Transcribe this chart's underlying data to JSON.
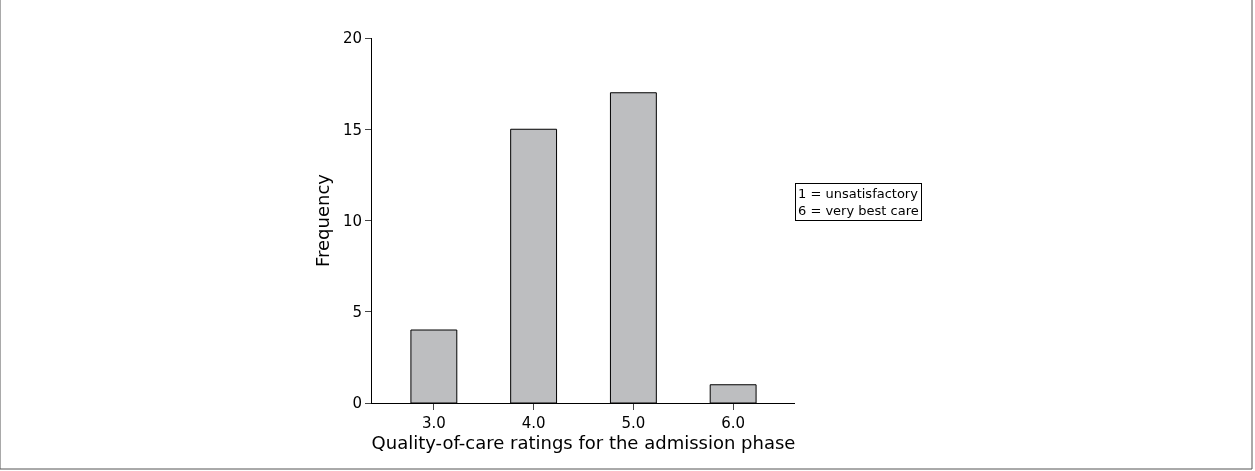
{
  "chart_data": {
    "type": "bar",
    "categories": [
      "3.0",
      "4.0",
      "5.0",
      "6.0"
    ],
    "values": [
      4,
      15,
      17,
      1
    ],
    "color": "#bdbec0",
    "xlabel": "Quality-of-care ratings for the admission phase",
    "ylabel": "Frequency",
    "ylim": [
      0,
      20
    ],
    "yticks": [
      0,
      5,
      10,
      15,
      20
    ],
    "legend": false,
    "annotations": [
      "1 = unsatisfactory\n6 = very best care"
    ]
  }
}
